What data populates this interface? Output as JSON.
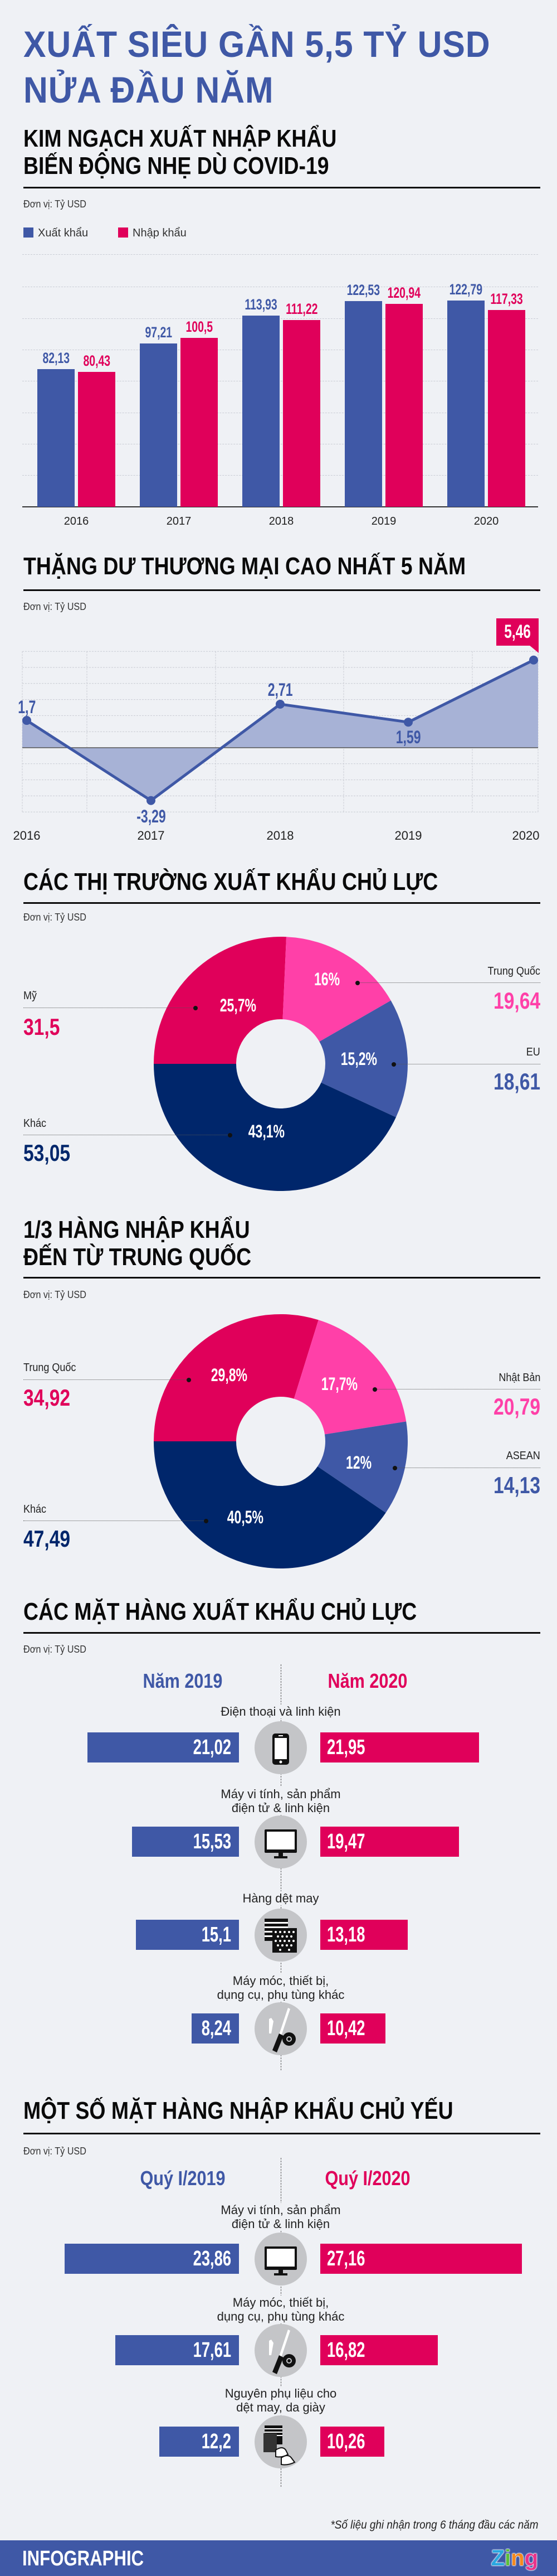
{
  "title": {
    "line1": "XUẤT SIÊU GẦN 5,5 TỶ USD",
    "line2": "NỬA ĐẦU NĂM"
  },
  "colors": {
    "blue": "#3f58a6",
    "red": "#e0005a",
    "pink": "#ff40a8",
    "navy": "#00266b",
    "background": "#eff1f5"
  },
  "unit_label": "Đơn vị: Tỷ USD",
  "trade": {
    "heading": [
      "KIM NGẠCH XUẤT NHẬP KHẨU",
      "BIẾN ĐỘNG NHẸ DÙ COVID-19"
    ],
    "legend": [
      "Xuất khẩu",
      "Nhập khẩu"
    ]
  },
  "surplus": {
    "heading": "THẶNG DƯ THƯƠNG MẠI CAO NHẤT 5 NĂM"
  },
  "export_markets": {
    "heading": "CÁC THỊ TRƯỜNG XUẤT KHẨU CHỦ LỰC"
  },
  "import_markets": {
    "heading": [
      "1/3 HÀNG NHẬP KHẨU",
      "ĐẾN TỪ TRUNG QUỐC"
    ]
  },
  "export_goods": {
    "heading": "CÁC MẶT HÀNG XUẤT KHẨU CHỦ LỰC"
  },
  "import_goods": {
    "heading": "MỘT SỐ MẶT HÀNG NHẬP KHẨU CHỦ YẾU"
  },
  "footnote": "*Số liệu ghi nhận trong 6 tháng đầu các năm",
  "footer": {
    "label": "INFOGRAPHIC",
    "logo": "Zing"
  },
  "chart_data": [
    {
      "type": "bar",
      "categories": [
        "2016",
        "2017",
        "2018",
        "2019",
        "2020"
      ],
      "series": [
        {
          "name": "Xuất khẩu",
          "values": [
            82.13,
            97.21,
            113.93,
            122.53,
            122.79
          ],
          "labels": [
            "82,13",
            "97,21",
            "113,93",
            "122,53",
            "122,79"
          ],
          "color": "#3f58a6"
        },
        {
          "name": "Nhập khẩu",
          "values": [
            80.43,
            100.5,
            111.22,
            120.94,
            117.33
          ],
          "labels": [
            "80,43",
            "100,5",
            "111,22",
            "120,94",
            "117,33"
          ],
          "color": "#e0005a"
        }
      ],
      "ylabel": "",
      "grid": true,
      "legend": "top-left"
    },
    {
      "type": "area",
      "x": [
        "2016",
        "2017",
        "2018",
        "2019",
        "2020"
      ],
      "values": [
        1.7,
        -3.29,
        2.71,
        1.59,
        5.46
      ],
      "labels": [
        "1,7",
        "-3,29",
        "2,71",
        "1,59",
        "5,46"
      ],
      "ylim": [
        -4,
        6
      ],
      "grid": true,
      "highlight": "2020",
      "color": "#3f58a6"
    },
    {
      "type": "pie",
      "slices": [
        {
          "label": "Mỹ",
          "value": 31.5,
          "value_label": "31,5",
          "percent": 25.7,
          "percent_label": "25,7%",
          "color": "#e0005a"
        },
        {
          "label": "Trung Quốc",
          "value": 19.64,
          "value_label": "19,64",
          "percent": 16,
          "percent_label": "16%",
          "color": "#ff40a8"
        },
        {
          "label": "EU",
          "value": 18.61,
          "value_label": "18,61",
          "percent": 15.2,
          "percent_label": "15,2%",
          "color": "#3f58a6"
        },
        {
          "label": "Khác",
          "value": 53.05,
          "value_label": "53,05",
          "percent": 43.1,
          "percent_label": "43,1%",
          "color": "#00266b"
        }
      ]
    },
    {
      "type": "pie",
      "slices": [
        {
          "label": "Trung Quốc",
          "value": 34.92,
          "value_label": "34,92",
          "percent": 29.8,
          "percent_label": "29,8%",
          "color": "#e0005a"
        },
        {
          "label": "Nhật Bản",
          "value": 20.79,
          "value_label": "20,79",
          "percent": 17.7,
          "percent_label": "17,7%",
          "color": "#ff40a8"
        },
        {
          "label": "ASEAN",
          "value": 14.13,
          "value_label": "14,13",
          "percent": 12,
          "percent_label": "12%",
          "color": "#3f58a6"
        },
        {
          "label": "Khác",
          "value": 47.49,
          "value_label": "47,49",
          "percent": 40.5,
          "percent_label": "40,5%",
          "color": "#00266b"
        }
      ]
    },
    {
      "type": "bar",
      "orientation": "horizontal-butterfly",
      "columns": [
        "Năm 2019",
        "Năm 2020"
      ],
      "items": [
        {
          "label": [
            "Điện thoại và linh kiện"
          ],
          "icon": "phone-icon",
          "left": 21.02,
          "left_label": "21,02",
          "right": 21.95,
          "right_label": "21,95"
        },
        {
          "label": [
            "Máy vi tính, sản phẩm",
            "điện tử & linh kiện"
          ],
          "icon": "computer-icon",
          "left": 15.53,
          "left_label": "15,53",
          "right": 19.47,
          "right_label": "19,47"
        },
        {
          "label": [
            "Hàng dệt may"
          ],
          "icon": "fabric-icon",
          "left": 15.1,
          "left_label": "15,1",
          "right": 13.18,
          "right_label": "13,18"
        },
        {
          "label": [
            "Máy móc, thiết bị,",
            "dụng cụ, phụ tùng khác"
          ],
          "icon": "tools-icon",
          "left": 8.24,
          "left_label": "8,24",
          "right": 10.42,
          "right_label": "10,42"
        }
      ]
    },
    {
      "type": "bar",
      "orientation": "horizontal-butterfly",
      "columns": [
        "Quý I/2019",
        "Quý I/2020"
      ],
      "items": [
        {
          "label": [
            "Máy vi tính, sản phẩm",
            "điện tử & linh kiện"
          ],
          "icon": "computer-icon",
          "left": 23.86,
          "left_label": "23,86",
          "right": 27.16,
          "right_label": "27,16"
        },
        {
          "label": [
            "Máy móc, thiết bị,",
            "dụng cụ, phụ tùng khác"
          ],
          "icon": "tools-icon",
          "left": 17.61,
          "left_label": "17,61",
          "right": 16.82,
          "right_label": "16,82"
        },
        {
          "label": [
            "Nguyên phụ liệu cho",
            "dệt may, da giày"
          ],
          "icon": "fabric-shoe-icon",
          "left": 12.2,
          "left_label": "12,2",
          "right": 10.26,
          "right_label": "10,26"
        }
      ]
    }
  ]
}
